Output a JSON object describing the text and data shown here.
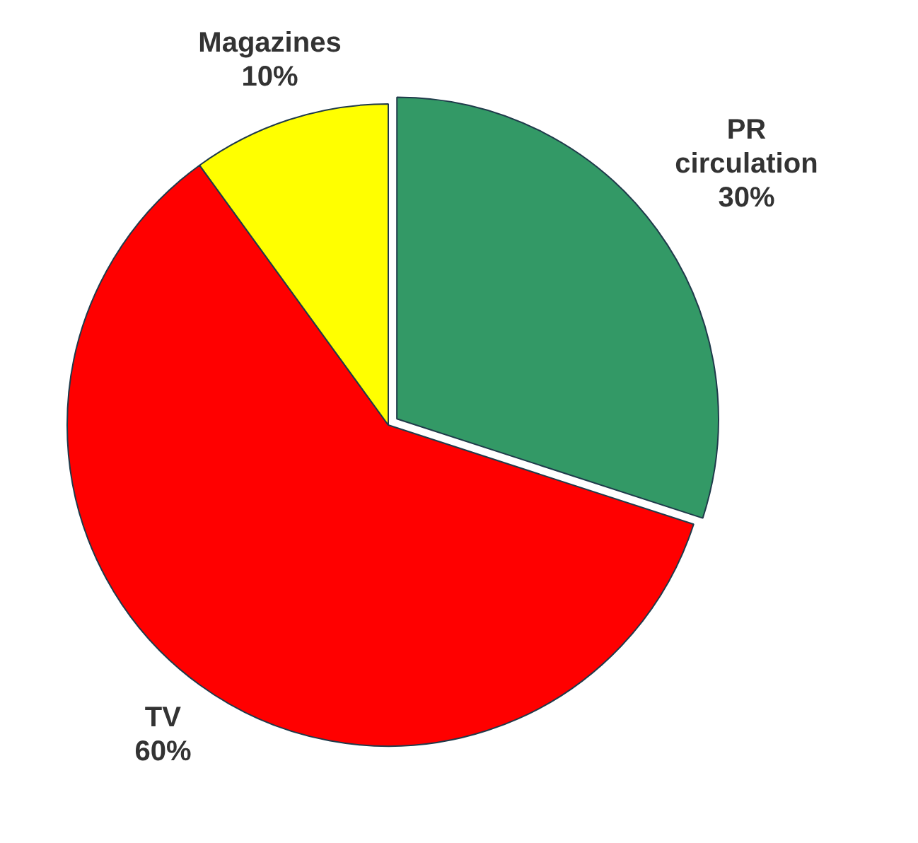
{
  "chart_data": {
    "type": "pie",
    "categories": [
      "PR circulation",
      "TV",
      "Magazines"
    ],
    "values": [
      30,
      60,
      10
    ],
    "colors": [
      "#339966",
      "#ff0000",
      "#ffff00"
    ],
    "value_labels": [
      "30%",
      "60%",
      "10%"
    ],
    "legend": false
  }
}
